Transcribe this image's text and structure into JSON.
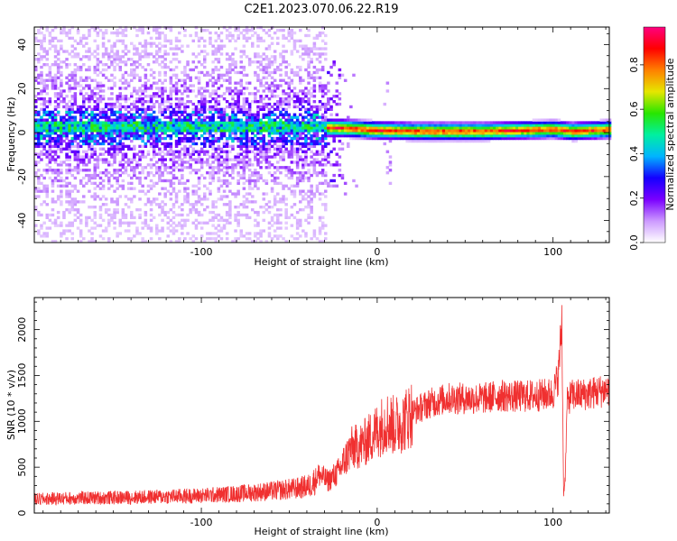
{
  "figure": {
    "title": "C2E1.2023.070.06.22.R19"
  },
  "chart_data": [
    {
      "type": "heatmap",
      "xlabel": "Height of straight line (km)",
      "ylabel": "Frequency (Hz)",
      "xlim": [
        -195,
        132
      ],
      "ylim": [
        -50,
        48
      ],
      "xticks": [
        -100,
        0,
        100
      ],
      "yticks": [
        -40,
        -20,
        0,
        20,
        40
      ],
      "colorbar": {
        "label": "Normalized spectral amplitude",
        "range": [
          0,
          0.97
        ],
        "ticks": [
          0.0,
          0.2,
          0.4,
          0.6,
          0.8
        ],
        "colormap": [
          "#ffffff",
          "#cc99ff",
          "#7a00ff",
          "#1400ff",
          "#00b4ff",
          "#00f0a0",
          "#28e600",
          "#e6e600",
          "#ff8000",
          "#ff0000",
          "#ff0080"
        ]
      },
      "ridge": {
        "description_points_x": [
          -195,
          -40,
          -20,
          0,
          20,
          40,
          60,
          80,
          100,
          110,
          132
        ],
        "center_freq_hz": [
          2,
          2,
          1.5,
          0.5,
          0,
          0,
          0,
          0.5,
          1,
          0,
          1
        ]
      }
    },
    {
      "type": "line",
      "xlabel": "Height of straight line (km)",
      "ylabel": "SNR (10 * v/v)",
      "xlim": [
        -195,
        132
      ],
      "ylim": [
        0,
        2350
      ],
      "xticks": [
        -100,
        0,
        100
      ],
      "yticks": [
        0,
        500,
        1000,
        1500,
        2000
      ],
      "series": [
        {
          "color": "#f03030",
          "x": [
            -195,
            -180,
            -160,
            -140,
            -120,
            -100,
            -80,
            -60,
            -45,
            -38,
            -33,
            -28,
            -22,
            -15,
            -8,
            0,
            5,
            10,
            15,
            20,
            25,
            30,
            40,
            50,
            60,
            70,
            80,
            90,
            100,
            103,
            105,
            106,
            107,
            108,
            110,
            120,
            132
          ],
          "y": [
            150,
            160,
            165,
            170,
            180,
            190,
            210,
            240,
            270,
            300,
            420,
            350,
            450,
            700,
            750,
            900,
            1000,
            950,
            1000,
            1100,
            1150,
            1200,
            1250,
            1250,
            1250,
            1280,
            1270,
            1280,
            1300,
            1500,
            2100,
            200,
            400,
            1200,
            1280,
            1300,
            1350
          ]
        }
      ]
    }
  ]
}
